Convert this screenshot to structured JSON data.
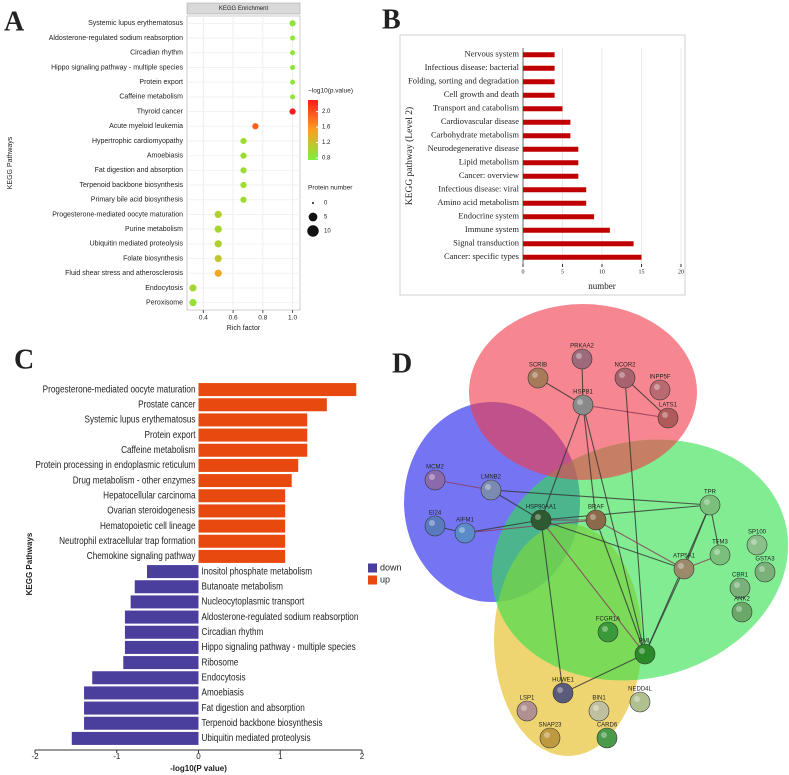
{
  "figure_labels": [
    "A",
    "B",
    "C",
    "D"
  ],
  "chart_data": [
    {
      "type": "scatter",
      "header": "KEGG Enrichment",
      "xlabel": "Rich factor",
      "ylabel": "KEGG Pathways",
      "categories": [
        "Systemic lupus erythematosus",
        "Aldosterone-regulated sodium reabsorption",
        "Circadian rhythm",
        "Hippo signaling pathway - multiple species",
        "Protein export",
        "Caffeine metabolism",
        "Thyroid cancer",
        "Acute myeloid leukemia",
        "Hypertrophic cardiomyopathy",
        "Amoebiasis",
        "Fat digestion and absorption",
        "Terpenoid backbone biosynthesis",
        "Primary bile acid biosynthesis",
        "Progesterone-mediated oocyte maturation",
        "Purine metabolism",
        "Ubiquitin mediated proteolysis",
        "Folate biosynthesis",
        "Fluid shear stress and atherosclerosis",
        "Endocytosis",
        "Peroxisome"
      ],
      "values": [
        1.0,
        1.0,
        1.0,
        1.0,
        1.0,
        1.0,
        1.0,
        0.75,
        0.67,
        0.67,
        0.67,
        0.67,
        0.67,
        0.5,
        0.5,
        0.5,
        0.5,
        0.5,
        0.33,
        0.33
      ],
      "color_values": [
        0.85,
        0.85,
        0.85,
        0.85,
        0.85,
        0.85,
        2.3,
        1.9,
        0.95,
        0.95,
        0.95,
        0.95,
        0.95,
        1.05,
        1.0,
        1.05,
        1.15,
        1.45,
        1.0,
        0.9
      ],
      "sizes": [
        2,
        1,
        1,
        1,
        1,
        1,
        2,
        2,
        2,
        2,
        2,
        2,
        2,
        3,
        3,
        3,
        3,
        3,
        3,
        3
      ],
      "xlim": [
        0.29,
        1.05
      ],
      "xticks": [
        0.4,
        0.6,
        0.8,
        {
          "value": 1.0,
          "label": "1.0"
        }
      ],
      "color_label": "−log10(p.value)",
      "clim": [
        0.75,
        2.3
      ],
      "cticks": [
        0.8,
        1.2,
        1.6,
        {
          "value": 2.0,
          "label": "2.0"
        }
      ],
      "colormap": [
        "#7cf03a",
        "#ffa020",
        "#ff1a1a"
      ],
      "size_label": "Protein number",
      "size_ticks": [
        0,
        5,
        10
      ]
    },
    {
      "type": "bar",
      "orientation": "horizontal",
      "xlabel": "number",
      "ylabel": "KEGG pathway (Level 2)",
      "categories": [
        "Nervous system",
        "Infectious disease: bacterial",
        "Folding, sorting and degradation",
        "Cell growth and death",
        "Transport and catabolism",
        "Cardiovascular disease",
        "Carbohydrate metabolism",
        "Neurodegenerative disease",
        "Lipid metabolism",
        "Cancer: overview",
        "Infectious disease: viral",
        "Amino acid metabolism",
        "Endocrine system",
        "Immune system",
        "Signal transduction",
        "Cancer: specific types"
      ],
      "values": [
        4,
        4,
        4,
        4,
        5,
        6,
        6,
        7,
        7,
        7,
        8,
        8,
        9,
        11,
        14,
        15
      ],
      "color": "#c00000",
      "xlim": [
        0,
        20
      ],
      "xticks": [
        0,
        5,
        10,
        15,
        20
      ],
      "grid": true
    },
    {
      "type": "bar",
      "orientation": "horizontal",
      "xlabel": "-log10(P value)",
      "ylabel": "KEGG Pathways",
      "categories": [
        "Progesterone-mediated oocyte maturation",
        "Prostate cancer",
        "Systemic lupus erythematosus",
        "Protein export",
        "Caffeine metabolism",
        "Protein processing in endoplasmic reticulum",
        "Drug metabolism - other enzymes",
        "Hepatocellular carcinoma",
        "Ovarian steroidogenesis",
        "Hematopoietic cell lineage",
        "Neutrophil extracellular trap formation",
        "Chemokine signaling pathway",
        "Inositol phosphate metabolism",
        "Butanoate metabolism",
        "Nucleocytoplasmic transport",
        "Aldosterone-regulated sodium reabsorption",
        "Circadian rhythm",
        "Hippo signaling pathway - multiple species",
        "Ribosome",
        "Endocytosis",
        "Amoebiasis",
        "Fat digestion and absorption",
        "Terpenoid backbone biosynthesis",
        "Ubiquitin mediated proteolysis"
      ],
      "series": [
        {
          "name": "down",
          "color": "#4a3f9c",
          "values": [
            null,
            null,
            null,
            null,
            null,
            null,
            null,
            null,
            null,
            null,
            null,
            null,
            -0.63,
            -0.78,
            -0.83,
            -0.9,
            -0.9,
            -0.9,
            -0.92,
            -1.3,
            -1.4,
            -1.4,
            -1.4,
            -1.55
          ]
        },
        {
          "name": "up",
          "color": "#e8490f",
          "values": [
            1.93,
            1.57,
            1.33,
            1.33,
            1.33,
            1.22,
            1.14,
            1.06,
            1.06,
            1.06,
            1.06,
            1.06,
            null,
            null,
            null,
            null,
            null,
            null,
            null,
            null,
            null,
            null,
            null,
            null
          ]
        }
      ],
      "xlim": [
        -2,
        2
      ],
      "xticks": [
        -2,
        -1,
        0,
        1,
        2
      ]
    },
    {
      "type": "network",
      "nodes": [
        "SCRIB",
        "PRKAA2",
        "NCOR2",
        "INPP5F",
        "HSPB1",
        "LATS1",
        "MCM2",
        "LMNB2",
        "HSP90AA1",
        "BRAF",
        "TPR",
        "EI24",
        "AIFM1",
        "ATP5A1",
        "TFM3",
        "SP100",
        "GSTA3",
        "CBR1",
        "ANK2",
        "FCGR1A",
        "PML",
        "HUWE1",
        "LSP1",
        "BIN1",
        "NEDD4L",
        "SNAP23",
        "CARD6"
      ]
    }
  ]
}
